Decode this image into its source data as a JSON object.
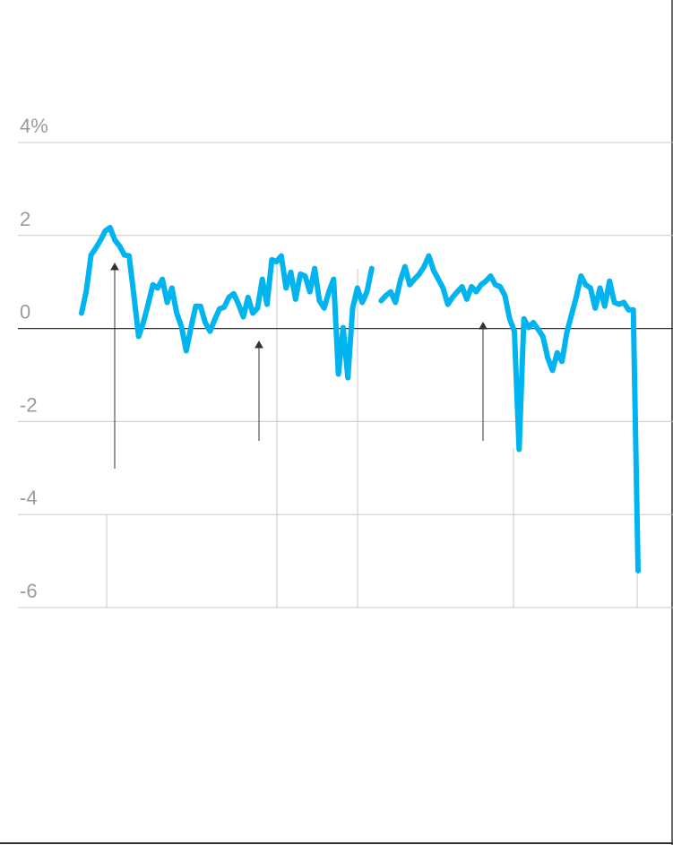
{
  "chart_data": {
    "type": "line",
    "values": [
      0.33,
      0.81,
      1.58,
      1.73,
      1.9,
      2.1,
      2.17,
      1.9,
      1.77,
      1.58,
      1.56,
      0.71,
      -0.17,
      0.13,
      0.52,
      0.94,
      0.87,
      1.06,
      0.56,
      0.87,
      0.33,
      0.04,
      -0.48,
      0.02,
      0.48,
      0.48,
      0.13,
      -0.06,
      0.19,
      0.42,
      0.46,
      0.67,
      0.75,
      0.52,
      0.25,
      0.67,
      0.33,
      0.44,
      1.06,
      0.52,
      1.48,
      1.44,
      1.56,
      0.87,
      1.21,
      0.63,
      1.17,
      1.13,
      0.79,
      1.29,
      0.6,
      0.44,
      0.79,
      1.06,
      -0.98,
      0.02,
      -1.06,
      0.44,
      0.87,
      0.56,
      0.79,
      1.29,
      null,
      0.6,
      0.71,
      0.79,
      0.56,
      1.02,
      1.33,
      0.94,
      1.06,
      1.17,
      1.33,
      1.56,
      1.25,
      1.06,
      0.87,
      0.52,
      0.67,
      0.79,
      0.9,
      0.63,
      0.9,
      0.79,
      0.94,
      1.02,
      1.13,
      0.94,
      0.9,
      0.71,
      0.21,
      -0.06,
      -2.6,
      0.21,
      0.02,
      0.13,
      -0.02,
      -0.17,
      -0.63,
      -0.9,
      -0.52,
      -0.71,
      -0.1,
      0.29,
      0.67,
      1.13,
      0.94,
      0.87,
      0.44,
      0.87,
      0.48,
      1.02,
      0.56,
      0.52,
      0.56,
      0.4,
      0.4,
      -5.21
    ],
    "color": "#00b4f0",
    "ylim": [
      -6,
      4
    ],
    "yticks": [
      {
        "value": 4,
        "label": "4%"
      },
      2,
      0,
      -2,
      -4,
      -6
    ],
    "grid": true
  }
}
